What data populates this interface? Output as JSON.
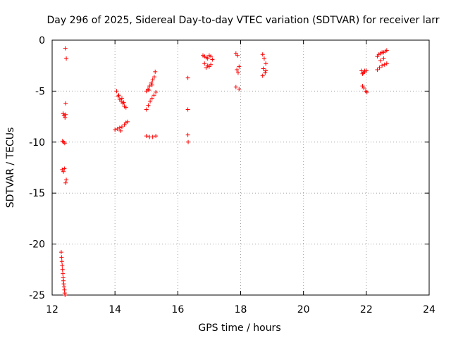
{
  "chart_data": {
    "type": "scatter",
    "title": "Day 296 of 2025, Sidereal Day-to-day VTEC variation (SDTVAR) for receiver larr",
    "xlabel": "GPS time / hours",
    "ylabel": "SDTVAR / TECUs",
    "xlim": [
      12,
      24
    ],
    "ylim": [
      -25,
      0
    ],
    "xticks": [
      12,
      14,
      16,
      18,
      20,
      22,
      24
    ],
    "yticks": [
      0,
      -5,
      -10,
      -15,
      -20,
      -25
    ],
    "xtick_labels": [
      "12",
      "14",
      "16",
      "18",
      "20",
      "22",
      "24"
    ],
    "ytick_labels": [
      "0",
      "-5",
      "-10",
      "-15",
      "-20",
      "-25"
    ],
    "grid": true,
    "legend": "none",
    "marker": "plus",
    "color": "#ff0000",
    "series": [
      {
        "name": "SDTVAR",
        "x": [
          12.42,
          12.45,
          12.43,
          12.35,
          12.38,
          12.41,
          12.43,
          12.33,
          12.37,
          12.4,
          12.32,
          12.36,
          12.39,
          12.45,
          12.43,
          12.29,
          12.3,
          12.31,
          12.32,
          12.33,
          12.34,
          12.35,
          12.36,
          12.37,
          12.38,
          12.39,
          12.4,
          12.41,
          14.05,
          14.1,
          14.15,
          14.2,
          14.25,
          14.3,
          14.35,
          14.12,
          14.22,
          14.28,
          14.0,
          14.08,
          14.15,
          14.22,
          14.3,
          14.35,
          14.4,
          14.18,
          15.0,
          15.05,
          15.1,
          15.15,
          15.2,
          15.25,
          15.28,
          15.08,
          15.18,
          15.0,
          15.06,
          15.12,
          15.18,
          15.24,
          15.3,
          15.0,
          15.1,
          15.2,
          15.3,
          16.32,
          16.32,
          16.32,
          16.33,
          16.8,
          16.85,
          16.9,
          16.95,
          17.0,
          17.05,
          17.1,
          16.85,
          16.95,
          17.05,
          16.9,
          17.0,
          17.85,
          17.9,
          17.95,
          17.88,
          17.92,
          17.85,
          17.95,
          18.7,
          18.75,
          18.8,
          18.72,
          18.78,
          18.7,
          18.8,
          21.85,
          21.9,
          21.95,
          22.0,
          21.88,
          21.95,
          21.88,
          21.92,
          21.98,
          22.02,
          22.35,
          22.4,
          22.45,
          22.5,
          22.55,
          22.6,
          22.65,
          22.35,
          22.42,
          22.5,
          22.58,
          22.65,
          22.45,
          22.55
        ],
        "y": [
          -0.8,
          -1.8,
          -6.2,
          -7.2,
          -7.4,
          -7.6,
          -7.3,
          -9.9,
          -10.0,
          -10.1,
          -12.7,
          -12.9,
          -12.6,
          -13.7,
          -14.0,
          -20.8,
          -21.3,
          -21.7,
          -22.1,
          -22.5,
          -22.9,
          -23.3,
          -23.6,
          -23.9,
          -24.2,
          -24.5,
          -24.8,
          -25.0,
          -5.0,
          -5.5,
          -5.8,
          -6.0,
          -6.2,
          -6.5,
          -6.6,
          -5.4,
          -5.7,
          -6.1,
          -8.8,
          -8.7,
          -8.6,
          -8.5,
          -8.3,
          -8.1,
          -8.0,
          -8.9,
          -5.0,
          -4.8,
          -4.5,
          -4.2,
          -3.9,
          -3.6,
          -3.1,
          -4.9,
          -4.4,
          -6.8,
          -6.4,
          -6.0,
          -5.7,
          -5.4,
          -5.1,
          -9.4,
          -9.5,
          -9.5,
          -9.4,
          -3.7,
          -6.8,
          -9.3,
          -10.0,
          -1.5,
          -1.6,
          -1.7,
          -1.8,
          -1.5,
          -1.6,
          -1.9,
          -2.3,
          -2.5,
          -2.4,
          -2.7,
          -2.6,
          -1.3,
          -1.5,
          -2.6,
          -2.9,
          -3.2,
          -4.6,
          -4.8,
          -1.4,
          -1.8,
          -2.3,
          -2.8,
          -3.2,
          -3.5,
          -3.0,
          -3.0,
          -3.2,
          -3.1,
          -3.0,
          -3.3,
          -3.0,
          -4.5,
          -4.7,
          -5.0,
          -5.1,
          -1.6,
          -1.4,
          -1.3,
          -1.2,
          -1.2,
          -1.1,
          -1.0,
          -2.9,
          -2.7,
          -2.5,
          -2.4,
          -2.3,
          -2.0,
          -1.8
        ]
      }
    ]
  }
}
